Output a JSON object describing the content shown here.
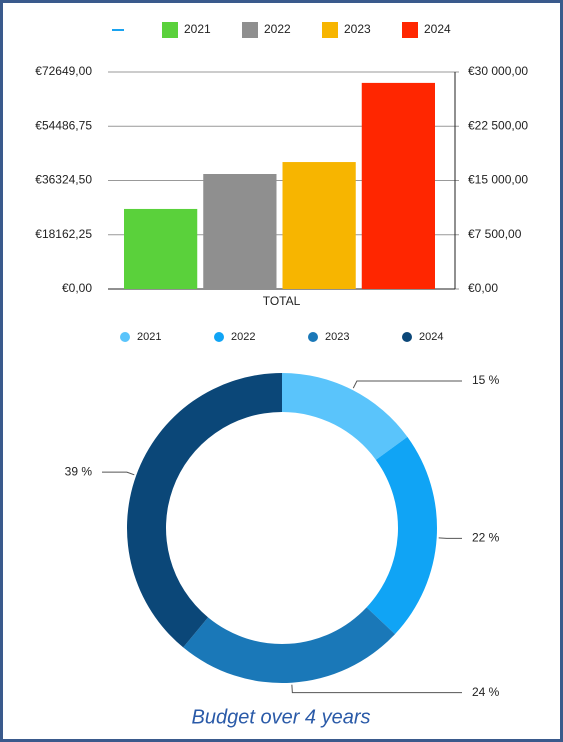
{
  "chart_data": [
    {
      "type": "bar",
      "categories": [
        "TOTAL"
      ],
      "series": [
        {
          "name": "2021",
          "color": "#5ad13b",
          "values": [
            26800
          ]
        },
        {
          "name": "2022",
          "color": "#8f8f8f",
          "values": [
            38500
          ]
        },
        {
          "name": "2023",
          "color": "#f7b500",
          "values": [
            42500
          ]
        },
        {
          "name": "2024",
          "color": "#ff2600",
          "values": [
            69000
          ]
        }
      ],
      "ylim": [
        0,
        72649
      ],
      "yticks": [
        {
          "value": 0,
          "label": "€0,00"
        },
        {
          "value": 18162.25,
          "label": "€18162,25"
        },
        {
          "value": 36324.5,
          "label": "€36324,50"
        },
        {
          "value": 54486.75,
          "label": "€54486,75"
        },
        {
          "value": 72649,
          "label": "€72649,00"
        }
      ],
      "y2lim": [
        0,
        30000
      ],
      "y2ticks": [
        {
          "value": 0,
          "label": "€0,00"
        },
        {
          "value": 7500,
          "label": "€7 500,00"
        },
        {
          "value": 15000,
          "label": "€15 000,00"
        },
        {
          "value": 22500,
          "label": "€22 500,00"
        },
        {
          "value": 30000,
          "label": "€30 000,00"
        }
      ],
      "grid": true,
      "legend": "top"
    },
    {
      "type": "donut",
      "title": "Budget over 4 years",
      "categories": [
        "2021",
        "2022",
        "2023",
        "2024"
      ],
      "values": [
        15,
        22,
        24,
        39
      ],
      "value_labels": [
        "15 %",
        "22 %",
        "24 %",
        "39 %"
      ],
      "colors": [
        "#5ac4fb",
        "#10a4f5",
        "#1a78b8",
        "#0b4778"
      ],
      "legend": "top"
    }
  ]
}
